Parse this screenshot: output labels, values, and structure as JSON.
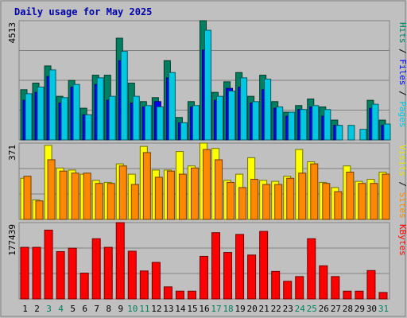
{
  "chart_data": {
    "type": "bar",
    "title": "Daily usage for May 2025",
    "categories": [
      "1",
      "2",
      "3",
      "4",
      "5",
      "6",
      "7",
      "8",
      "9",
      "10",
      "11",
      "12",
      "13",
      "14",
      "15",
      "16",
      "17",
      "18",
      "19",
      "20",
      "21",
      "22",
      "23",
      "24",
      "25",
      "26",
      "27",
      "28",
      "29",
      "30",
      "31"
    ],
    "weekend_days": [
      "3",
      "4",
      "10",
      "11",
      "17",
      "18",
      "24",
      "25",
      "31"
    ],
    "weekend_label_color": "#00805a",
    "weekday_label_color": "#000000",
    "panels": [
      {
        "name": "hits-files-pages",
        "ymax_label": "4513",
        "ylim": [
          0,
          4513
        ],
        "right_labels": [
          {
            "text": "Pages",
            "color": "#00c8e0"
          },
          {
            "text": " / ",
            "color": "#000000"
          },
          {
            "text": "Files",
            "color": "#0000ff"
          },
          {
            "text": " / ",
            "color": "#000000"
          },
          {
            "text": "Hits",
            "color": "#008060"
          }
        ],
        "series": [
          {
            "name": "Hits",
            "color": "#008060",
            "values": [
              1900,
              2150,
              2800,
              1650,
              2250,
              1200,
              2450,
              2450,
              3850,
              2150,
              1450,
              1600,
              3000,
              850,
              1450,
              4513,
              1800,
              2200,
              2550,
              1650,
              2450,
              1450,
              1050,
              1300,
              1550,
              1250,
              750,
              0,
              0,
              1500,
              750
            ]
          },
          {
            "name": "Files",
            "color": "#0000ff",
            "values": [
              1500,
              1800,
              2400,
              1400,
              2000,
              950,
              2100,
              1500,
              3000,
              1400,
              1250,
              1450,
              2350,
              650,
              1250,
              3400,
              1500,
              1950,
              2000,
              1400,
              1900,
              1200,
              900,
              1150,
              1250,
              900,
              550,
              0,
              0,
              1200,
              550
            ]
          },
          {
            "name": "Pages",
            "color": "#00c8e0",
            "values": [
              1750,
              2000,
              2650,
              1600,
              2100,
              950,
              2350,
              1650,
              3350,
              1650,
              1300,
              1250,
              2550,
              650,
              1300,
              4150,
              1650,
              1850,
              2350,
              1450,
              2300,
              1250,
              1050,
              1150,
              1300,
              1150,
              550,
              550,
              400,
              1350,
              600
            ]
          }
        ]
      },
      {
        "name": "visits-sites",
        "ymax_label": "371",
        "ylim": [
          0,
          371
        ],
        "right_labels": [
          {
            "text": "Sites",
            "color": "#ff8800"
          },
          {
            "text": " / ",
            "color": "#000000"
          },
          {
            "text": "Visits",
            "color": "#e8e800"
          }
        ],
        "series": [
          {
            "name": "Visits",
            "color": "#ffff00",
            "values": [
              200,
              95,
              360,
              250,
              240,
              220,
              190,
              180,
              270,
              220,
              355,
              240,
              240,
              330,
              260,
              371,
              345,
              190,
              220,
              300,
              190,
              185,
              210,
              340,
              280,
              180,
              155,
              260,
              185,
              195,
              230
            ]
          },
          {
            "name": "Sites",
            "color": "#ff8800",
            "values": [
              210,
              90,
              290,
              235,
              225,
              225,
              175,
              175,
              260,
              170,
              325,
              205,
              235,
              220,
              250,
              340,
              290,
              180,
              155,
              195,
              170,
              170,
              200,
              225,
              270,
              175,
              135,
              230,
              175,
              175,
              220
            ]
          }
        ]
      },
      {
        "name": "kbytes",
        "ymax_label": "177439",
        "ylim": [
          0,
          177439
        ],
        "right_labels": [
          {
            "text": "KBytes",
            "color": "#ff0000"
          }
        ],
        "series": [
          {
            "name": "KBytes",
            "color": "#ff0000",
            "values": [
              120000,
              120000,
              160000,
              110000,
              118000,
              60000,
              140000,
              120000,
              177439,
              111000,
              65000,
              85000,
              28000,
              18000,
              18000,
              99000,
              154000,
              108000,
              150000,
              102000,
              157000,
              64000,
              41000,
              52000,
              140000,
              77000,
              52000,
              18000,
              18000,
              66000,
              15000
            ]
          }
        ]
      }
    ]
  }
}
